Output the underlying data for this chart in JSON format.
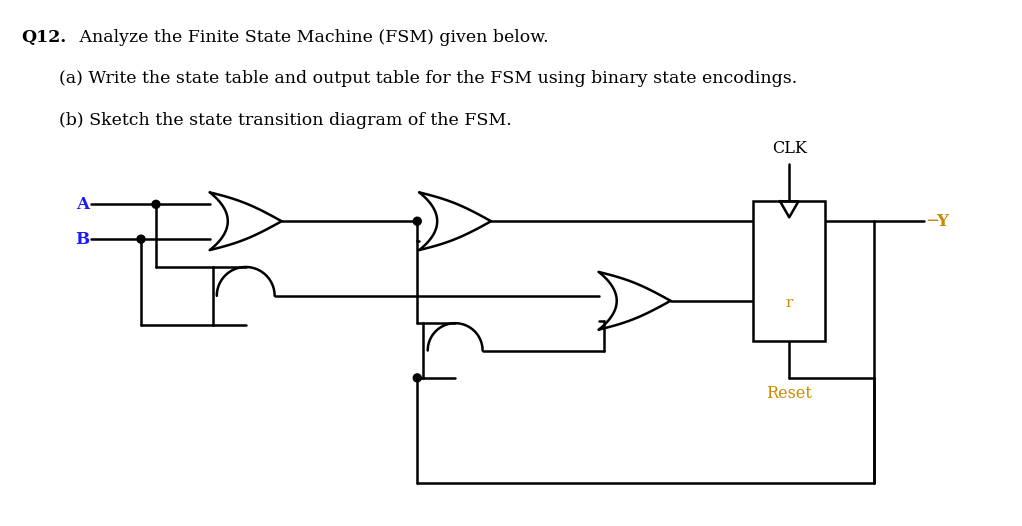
{
  "bg_color": "#ffffff",
  "line_color": "#000000",
  "lw": 1.8,
  "dot_r": 0.04,
  "title_bold": "Q12.",
  "title_rest": " Analyze the Finite State Machine (FSM) given below.",
  "part_a": "(a) Write the state table and output table for the FSM using binary state encodings.",
  "part_b": "(b) Sketch the state transition diagram of the FSM.",
  "label_color_AB": "#1a1aff",
  "label_color_Y": "#cc8800",
  "label_color_Reset": "#cc8800",
  "label_color_r": "#cc8800",
  "label_color_CLK": "#000000"
}
